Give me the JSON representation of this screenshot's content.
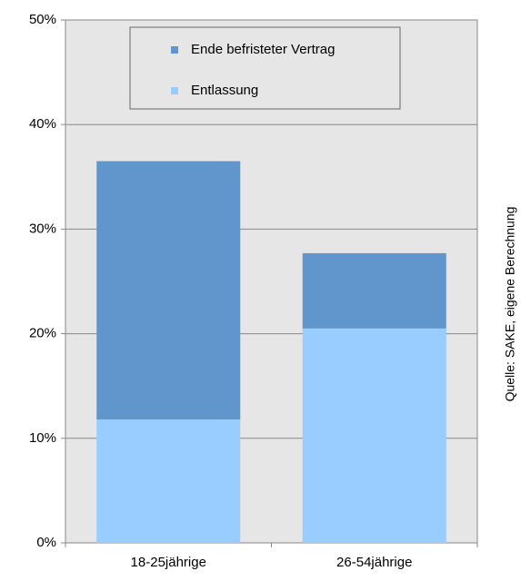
{
  "chart_data": {
    "type": "bar",
    "stacked": true,
    "categories": [
      "18-25jährige",
      "26-54jährige"
    ],
    "series": [
      {
        "name": "Entlassung",
        "color": "#99ccff",
        "values": [
          11.8,
          20.5
        ]
      },
      {
        "name": "Ende befristeter Vertrag",
        "color": "#6096cc",
        "values": [
          24.7,
          7.2
        ]
      }
    ],
    "ylim": [
      0,
      50
    ],
    "yticks": [
      {
        "value": 0,
        "label": "0%"
      },
      {
        "value": 10,
        "label": "10%"
      },
      {
        "value": 20,
        "label": "20%"
      },
      {
        "value": 30,
        "label": "30%"
      },
      {
        "value": 40,
        "label": "40%"
      },
      {
        "value": 50,
        "label": "50%"
      }
    ],
    "grid": true,
    "legend": "top",
    "source": "Quelle: SAKE, eigene Berechnung"
  }
}
